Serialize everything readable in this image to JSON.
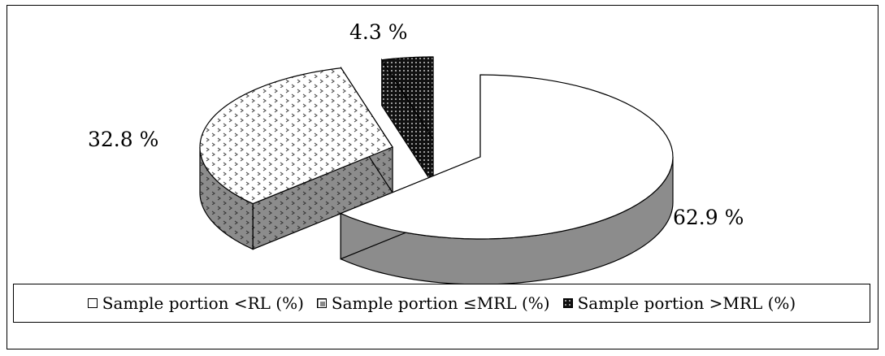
{
  "chart_data": {
    "type": "pie",
    "style": "3d-exploded",
    "title": "",
    "slices": [
      {
        "name": "Sample portion <RL (%)",
        "value": 62.9,
        "label": "62.9 %",
        "fill": "white",
        "color": "#ffffff",
        "side_color": "#8c8c8c"
      },
      {
        "name": "Sample portion ≤MRL (%)",
        "value": 32.8,
        "label": "32.8 %",
        "fill": "dotted-light",
        "color": "#ffffff",
        "side_color": "#8c8c8c"
      },
      {
        "name": "Sample portion >MRL (%)",
        "value": 4.3,
        "label": "4.3 %",
        "fill": "dotted-dark",
        "color": "#111111",
        "side_color": "#111111"
      }
    ],
    "legend_position": "bottom"
  }
}
